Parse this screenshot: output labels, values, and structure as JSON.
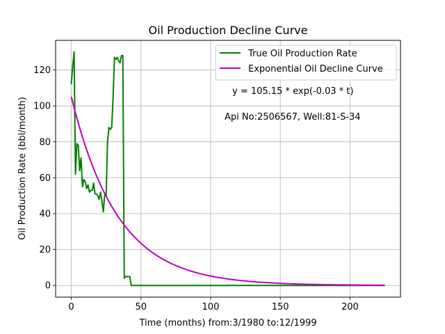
{
  "chart_data": {
    "type": "line",
    "title": "Oil Production Decline Curve",
    "xlabel": "Time (months) from:3/1980 to:12/1999",
    "ylabel": "Oil Production Rate (bbl/month)",
    "xlim": [
      -11.25,
      236.25
    ],
    "ylim": [
      -6.5,
      136.5
    ],
    "xticks": [
      0,
      50,
      100,
      150,
      200
    ],
    "yticks": [
      0,
      20,
      40,
      60,
      80,
      100,
      120
    ],
    "grid": true,
    "legend": "top-right",
    "annotations": [
      "y = 105.15 * exp(-0.03 * t)",
      "Api No:2506567, Well:81-S-34"
    ],
    "series": [
      {
        "name": "True Oil Production Rate",
        "color": "#008000",
        "x": [
          0,
          1,
          2,
          3,
          4,
          5,
          6,
          7,
          8,
          9,
          10,
          11,
          12,
          13,
          14,
          15,
          16,
          17,
          18,
          19,
          20,
          21,
          22,
          23,
          24,
          25,
          26,
          27,
          28,
          29,
          30,
          31,
          32,
          33,
          34,
          35,
          36,
          37,
          38,
          39,
          40,
          41,
          42,
          43,
          44,
          45,
          50,
          100,
          150,
          200,
          225
        ],
        "y": [
          112,
          122,
          130,
          62,
          79,
          78,
          64,
          71,
          55,
          59,
          58,
          54,
          56,
          52,
          53,
          53,
          57,
          51,
          51,
          50,
          48,
          52,
          47,
          41,
          51,
          50,
          80,
          88,
          87,
          88,
          105,
          127,
          126,
          127,
          125,
          124,
          128,
          128,
          4,
          5,
          5,
          5,
          5,
          0,
          0,
          0,
          0,
          0,
          0,
          0,
          0
        ]
      },
      {
        "name": "Exponential Oil Decline Curve",
        "color": "#bf00bf",
        "equation": {
          "a": 105.15,
          "b": 0.03
        },
        "x_range": [
          0,
          225
        ]
      }
    ]
  }
}
